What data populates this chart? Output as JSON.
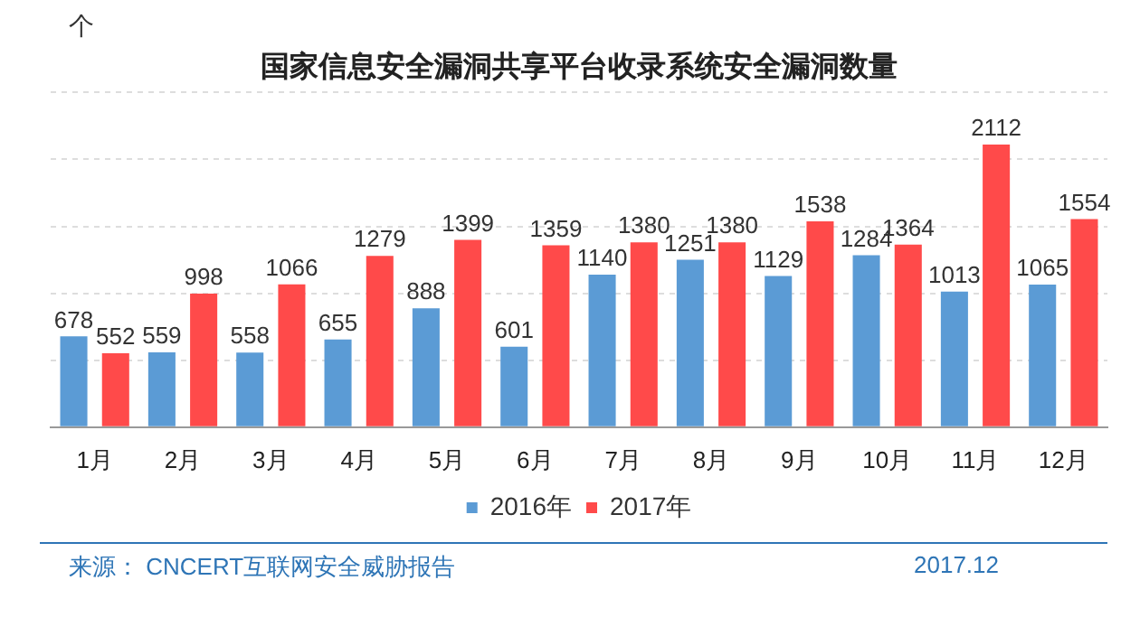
{
  "chart_data": {
    "type": "bar",
    "title": "国家信息安全漏洞共享平台收录系统安全漏洞数量",
    "ylabel": "个",
    "categories": [
      "1月",
      "2月",
      "3月",
      "4月",
      "5月",
      "6月",
      "7月",
      "8月",
      "9月",
      "10月",
      "11月",
      "12月"
    ],
    "series": [
      {
        "name": "2016年",
        "color": "#5b9bd5",
        "values": [
          678,
          559,
          558,
          655,
          888,
          601,
          1140,
          1251,
          1129,
          1284,
          1013,
          1065
        ]
      },
      {
        "name": "2017年",
        "color": "#ff4a4a",
        "values": [
          552,
          998,
          1066,
          1279,
          1399,
          1359,
          1380,
          1380,
          1538,
          1364,
          2112,
          1554
        ]
      }
    ],
    "grid": "y",
    "legend": "bottom",
    "data_labels": true,
    "tick_labels": "x",
    "annotations": [
      "来源： CNCERT互联网安全威胁报告",
      "2017.12"
    ]
  }
}
